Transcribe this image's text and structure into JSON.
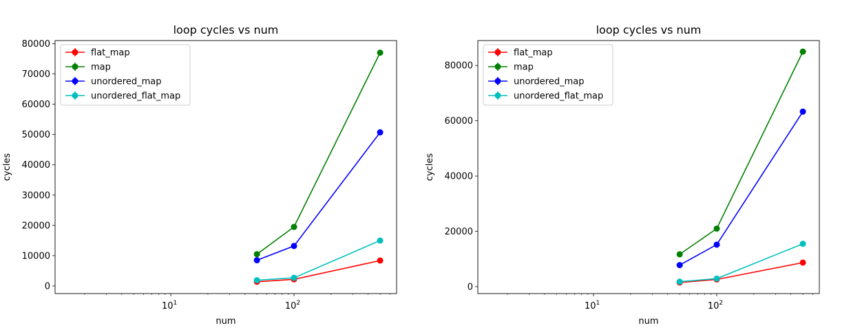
{
  "chart_data": [
    {
      "type": "line",
      "title": "loop cycles vs num",
      "xlabel": "num",
      "ylabel": "cycles",
      "xscale": "log",
      "xlim": [
        1.15,
        680
      ],
      "ylim": [
        -2500,
        81000
      ],
      "xticks": [
        {
          "value": 10,
          "base": "10",
          "exp": "1"
        },
        {
          "value": 100,
          "base": "10",
          "exp": "2"
        }
      ],
      "yticks": [
        0,
        10000,
        20000,
        30000,
        40000,
        50000,
        60000,
        70000,
        80000
      ],
      "yticklabels": [
        "0",
        "10000",
        "20000",
        "30000",
        "40000",
        "50000",
        "60000",
        "70000",
        "80000"
      ],
      "legend": "top-left",
      "x": [
        50,
        100,
        500
      ],
      "series": [
        {
          "name": "flat_map",
          "color": "#ff0000",
          "values": [
            1400,
            2200,
            8400
          ]
        },
        {
          "name": "map",
          "color": "#008000",
          "values": [
            10500,
            19500,
            77000
          ]
        },
        {
          "name": "unordered_map",
          "color": "#0000ff",
          "values": [
            8500,
            13200,
            50700
          ]
        },
        {
          "name": "unordered_flat_map",
          "color": "#00bfbf",
          "values": [
            1900,
            2700,
            15000
          ]
        }
      ]
    },
    {
      "type": "line",
      "title": "loop cycles vs num",
      "xlabel": "num",
      "ylabel": "cycles",
      "xscale": "log",
      "xlim": [
        1.15,
        680
      ],
      "ylim": [
        -2500,
        89000
      ],
      "xticks": [
        {
          "value": 10,
          "base": "10",
          "exp": "1"
        },
        {
          "value": 100,
          "base": "10",
          "exp": "2"
        }
      ],
      "yticks": [
        0,
        20000,
        40000,
        60000,
        80000
      ],
      "yticklabels": [
        "0",
        "20000",
        "40000",
        "60000",
        "80000"
      ],
      "legend": "top-left",
      "x": [
        50,
        100,
        500
      ],
      "series": [
        {
          "name": "flat_map",
          "color": "#ff0000",
          "values": [
            1500,
            2600,
            8700
          ]
        },
        {
          "name": "map",
          "color": "#008000",
          "values": [
            11700,
            21000,
            85000
          ]
        },
        {
          "name": "unordered_map",
          "color": "#0000ff",
          "values": [
            7800,
            15200,
            63300
          ]
        },
        {
          "name": "unordered_flat_map",
          "color": "#00bfbf",
          "values": [
            1800,
            2900,
            15500
          ]
        }
      ]
    }
  ]
}
